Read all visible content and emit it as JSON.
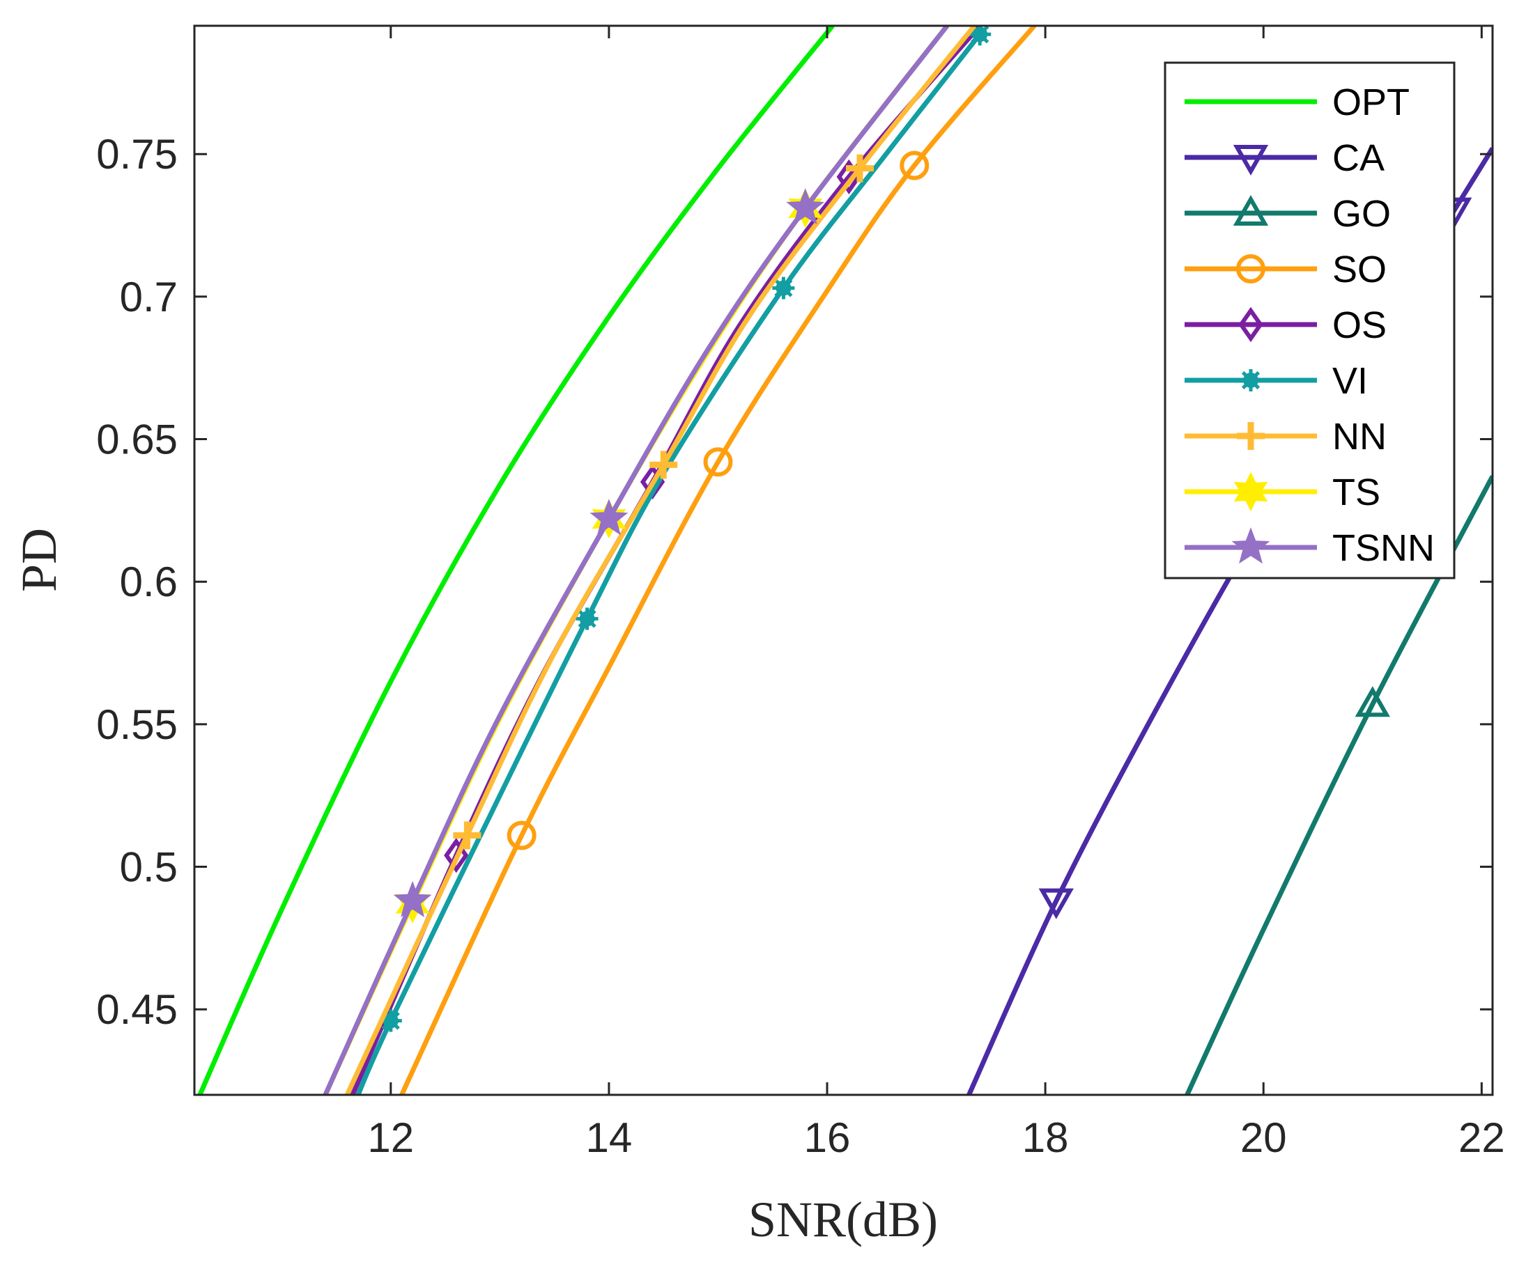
{
  "chart_data": {
    "type": "line",
    "title": "",
    "xlabel": "SNR(dB)",
    "ylabel": "PD",
    "xlim": [
      10.2,
      22.1
    ],
    "ylim": [
      0.42,
      0.795
    ],
    "xticks": [
      12,
      14,
      16,
      18,
      20,
      22
    ],
    "yticks": [
      0.45,
      0.5,
      0.55,
      0.6,
      0.65,
      0.7,
      0.75
    ],
    "xtick_labels": [
      "12",
      "14",
      "16",
      "18",
      "20",
      "22"
    ],
    "ytick_labels": [
      "0.45",
      "0.5",
      "0.55",
      "0.6",
      "0.65",
      "0.7",
      "0.75"
    ],
    "grid": false,
    "legend_position": "top-right",
    "series": [
      {
        "name": "OPT",
        "color": "#00ee00",
        "marker": "none",
        "x": [
          10.25,
          11.0,
          12.0,
          13.0,
          14.0,
          15.0,
          16.05
        ],
        "y": [
          0.42,
          0.485,
          0.565,
          0.634,
          0.693,
          0.745,
          0.795
        ],
        "marker_x": []
      },
      {
        "name": "CA",
        "color": "#4b2aa6",
        "marker": "triangle-down",
        "x": [
          17.3,
          18.1,
          19.0,
          20.0,
          21.0,
          22.1
        ],
        "y": [
          0.42,
          0.488,
          0.554,
          0.622,
          0.684,
          0.752
        ],
        "marker_x": [
          18.1,
          21.75
        ]
      },
      {
        "name": "GO",
        "color": "#117a6c",
        "marker": "triangle-up",
        "x": [
          19.3,
          20.0,
          21.0,
          22.1
        ],
        "y": [
          0.42,
          0.478,
          0.557,
          0.637
        ],
        "marker_x": [
          21.0
        ]
      },
      {
        "name": "SO",
        "color": "#ff9f0f",
        "marker": "circle",
        "x": [
          12.1,
          13.2,
          14.0,
          15.0,
          16.0,
          16.8,
          17.9
        ],
        "y": [
          0.42,
          0.511,
          0.57,
          0.642,
          0.702,
          0.746,
          0.795
        ],
        "marker_x": [
          13.2,
          15.0,
          16.8
        ]
      },
      {
        "name": "OS",
        "color": "#7a1fa2",
        "marker": "diamond",
        "x": [
          11.65,
          12.6,
          13.4,
          14.4,
          15.2,
          16.2,
          17.4
        ],
        "y": [
          0.42,
          0.504,
          0.568,
          0.635,
          0.69,
          0.742,
          0.795
        ],
        "marker_x": [
          12.6,
          14.4,
          16.2
        ]
      },
      {
        "name": "VI",
        "color": "#129ea3",
        "marker": "asterisk",
        "x": [
          11.7,
          12.0,
          13.0,
          13.8,
          14.5,
          15.6,
          16.5,
          17.4
        ],
        "y": [
          0.42,
          0.446,
          0.525,
          0.587,
          0.638,
          0.703,
          0.748,
          0.792
        ],
        "marker_x": [
          12.0,
          13.8,
          15.6,
          17.4
        ]
      },
      {
        "name": "NN",
        "color": "#ffbb33",
        "marker": "plus",
        "x": [
          11.6,
          12.7,
          13.5,
          14.5,
          15.3,
          16.3,
          17.35
        ],
        "y": [
          0.42,
          0.511,
          0.575,
          0.641,
          0.694,
          0.745,
          0.795
        ],
        "marker_x": [
          12.7,
          14.5,
          16.3
        ]
      },
      {
        "name": "TS",
        "color": "#ffee00",
        "marker": "hexagram",
        "x": [
          11.4,
          12.2,
          13.0,
          14.0,
          14.9,
          15.8,
          17.1
        ],
        "y": [
          0.42,
          0.487,
          0.552,
          0.622,
          0.68,
          0.731,
          0.795
        ],
        "marker_x": [
          12.2,
          14.0,
          15.8
        ]
      },
      {
        "name": "TSNN",
        "color": "#9470c6",
        "marker": "pentagram",
        "x": [
          11.4,
          12.2,
          13.0,
          14.0,
          14.9,
          15.8,
          17.1
        ],
        "y": [
          0.42,
          0.488,
          0.553,
          0.622,
          0.681,
          0.731,
          0.795
        ],
        "marker_x": [
          12.2,
          14.0,
          15.8
        ]
      }
    ]
  }
}
